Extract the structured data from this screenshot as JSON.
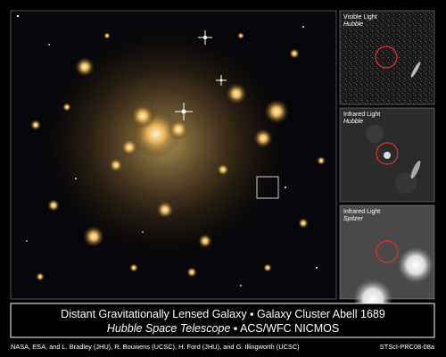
{
  "panels": [
    {
      "band": "Visible Light",
      "instrument": "Hubble"
    },
    {
      "band": "Infrared Light",
      "instrument": "Hubble"
    },
    {
      "band": "Infrared Light",
      "instrument": "Spitzer"
    }
  ],
  "caption": {
    "title": "Distant Gravitationally Lensed Galaxy ▪ Galaxy Cluster Abell 1689",
    "telescope": "Hubble Space Telescope",
    "separator": "▪",
    "instruments": "ACS/WFC NICMOS"
  },
  "credit": "NASA, ESA, and L. Bradley (JHU), R. Bouwens (UCSC), H. Ford (JHU), and G. Illingworth (UCSC)",
  "release_id": "STScI-PRC08-08a"
}
